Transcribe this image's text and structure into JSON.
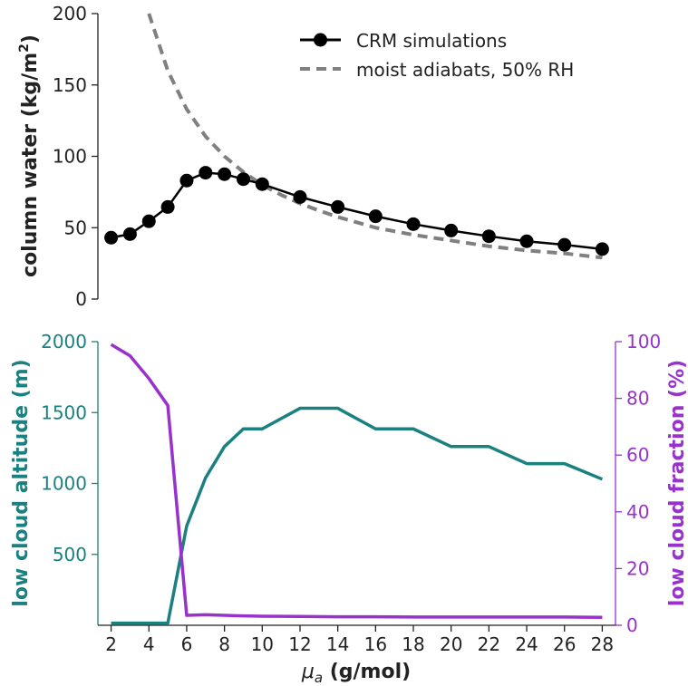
{
  "chart_data": [
    {
      "type": "line",
      "ylabel": "column water (kg/m",
      "ylabel_sup": "2",
      "ylabel_close": ")",
      "ylim": [
        0,
        200
      ],
      "yticks": [
        0,
        50,
        100,
        150,
        200
      ],
      "xlim": [
        1.3,
        28.7
      ],
      "grid": false,
      "legend_position": "top-right",
      "series": [
        {
          "name": "CRM simulations",
          "color": "#000000",
          "marker": "circle",
          "x": [
            2,
            3,
            4,
            5,
            6,
            7,
            8,
            9,
            10,
            12,
            14,
            16,
            18,
            20,
            22,
            24,
            26,
            28
          ],
          "y": [
            43,
            45.5,
            54.5,
            64.5,
            83,
            88.5,
            87.5,
            84,
            80.5,
            71.5,
            64.5,
            58,
            52.5,
            48,
            44,
            40.5,
            38,
            35
          ]
        },
        {
          "name": "moist adiabats, 50% RH",
          "color": "#808080",
          "dashed": true,
          "x": [
            4,
            5,
            6,
            7,
            8,
            9,
            10,
            11,
            12,
            13,
            14,
            16,
            18,
            20,
            22,
            24,
            26,
            28
          ],
          "y": [
            200,
            160,
            133,
            114,
            100,
            89,
            80,
            73,
            67,
            62,
            57.5,
            50,
            45,
            41,
            37,
            34,
            32,
            29
          ]
        }
      ]
    },
    {
      "type": "line",
      "xlabel_prefix": "μ",
      "xlabel_sub": "a",
      "xlabel_rest": " (g/mol)",
      "xticks": [
        2,
        4,
        6,
        8,
        10,
        12,
        14,
        16,
        18,
        20,
        22,
        24,
        26,
        28
      ],
      "xlim": [
        1.3,
        28.7
      ],
      "grid": false,
      "y_left": {
        "label": "low cloud altitude (m)",
        "color": "#1a8080",
        "lim": [
          0,
          2000
        ],
        "ticks": [
          500,
          1000,
          1500,
          2000
        ]
      },
      "y_right": {
        "label": "low cloud fraction (%)",
        "color": "#9932cc",
        "lim": [
          0,
          100
        ],
        "ticks": [
          0,
          20,
          40,
          60,
          80,
          100
        ]
      },
      "series": [
        {
          "axis": "left",
          "color": "#1a8080",
          "x": [
            2,
            3,
            4,
            5,
            6,
            7,
            8,
            9,
            10,
            12,
            14,
            16,
            18,
            20,
            22,
            24,
            26,
            28
          ],
          "y": [
            15,
            15,
            15,
            15,
            700,
            1040,
            1260,
            1385,
            1385,
            1530,
            1530,
            1385,
            1385,
            1260,
            1260,
            1140,
            1140,
            1030
          ]
        },
        {
          "axis": "right",
          "color": "#9932cc",
          "x": [
            2,
            3,
            4,
            5,
            6,
            7,
            8,
            9,
            10,
            12,
            14,
            16,
            18,
            20,
            22,
            24,
            26,
            28
          ],
          "y": [
            99,
            95,
            87,
            77.5,
            3.5,
            3.7,
            3.5,
            3.3,
            3.2,
            3.1,
            3,
            3,
            2.9,
            2.9,
            2.9,
            2.9,
            2.9,
            2.8
          ]
        }
      ]
    }
  ]
}
